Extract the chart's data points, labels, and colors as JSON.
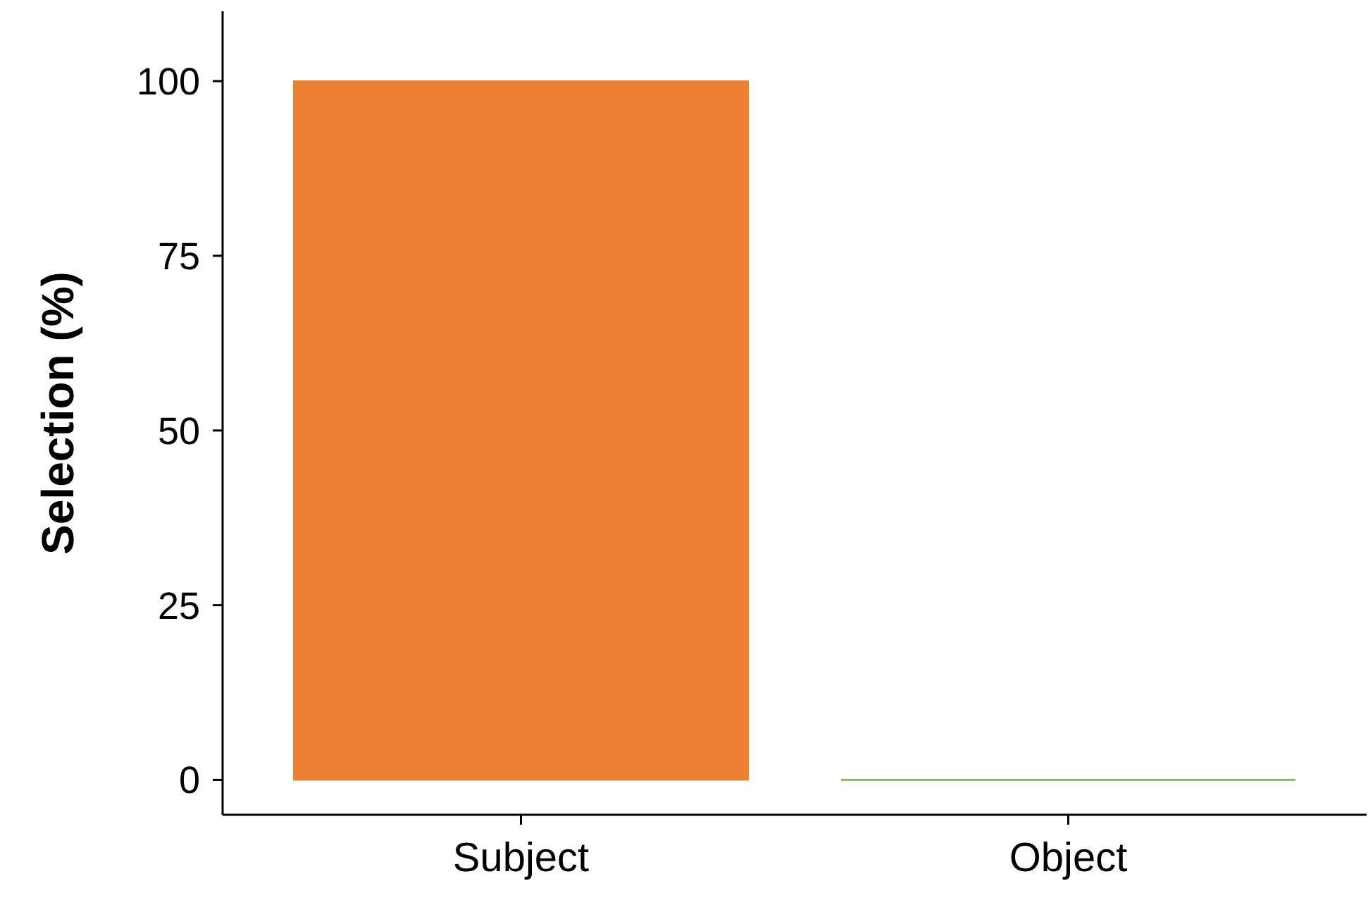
{
  "chart_data": {
    "type": "bar",
    "ylabel": "Selection (%)",
    "categories": [
      "Subject",
      "Object"
    ],
    "values": [
      100,
      0
    ],
    "colors": [
      "#ed7f31",
      "#6aad45"
    ],
    "ylim": [
      -5,
      110
    ],
    "yticks": [
      0,
      25,
      50,
      75,
      100
    ],
    "grid": false
  }
}
